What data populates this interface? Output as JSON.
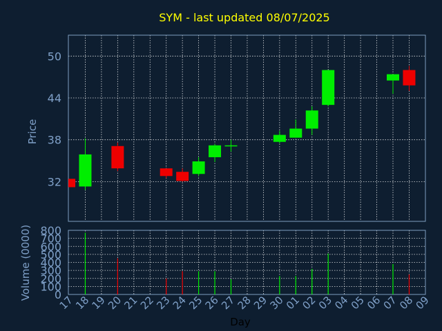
{
  "chart_data": {
    "type": "candlestick",
    "title": "SYM - last updated 08/07/2025",
    "colors": {
      "background": "#0e1e30",
      "title": "#ffff00",
      "axis_text": "#7fa0c8",
      "frame": "#7f9fc0",
      "grid": "#ffffff",
      "up": "#00ee00",
      "down": "#ee0000"
    },
    "price_panel": {
      "ylabel": "Price",
      "ylim": [
        26.3,
        53.0
      ],
      "yticks": [
        32,
        38,
        44,
        50
      ]
    },
    "volume_panel": {
      "ylabel": "Volume (0000)",
      "ylim": [
        0,
        800
      ],
      "yticks": [
        0,
        100,
        200,
        300,
        400,
        500,
        600,
        700,
        800
      ]
    },
    "xlabel": "Day",
    "x_tick_labels": [
      "17",
      "18",
      "19",
      "20",
      "21",
      "22",
      "23",
      "24",
      "25",
      "26",
      "27",
      "28",
      "29",
      "30",
      "01",
      "02",
      "03",
      "04",
      "05",
      "06",
      "07",
      "08",
      "09"
    ],
    "candles": [
      {
        "day_index": 0,
        "open": 32.4,
        "high": 32.4,
        "low": 31.2,
        "close": 31.2,
        "volume": 0
      },
      {
        "day_index": 1,
        "open": 31.3,
        "high": 38.2,
        "low": 30.8,
        "close": 35.9,
        "volume": 770
      },
      {
        "day_index": 3,
        "open": 37.1,
        "high": 37.6,
        "low": 33.5,
        "close": 33.9,
        "volume": 450
      },
      {
        "day_index": 6,
        "open": 33.9,
        "high": 33.9,
        "low": 32.5,
        "close": 32.8,
        "volume": 200
      },
      {
        "day_index": 7,
        "open": 33.4,
        "high": 33.9,
        "low": 32.0,
        "close": 32.1,
        "volume": 290
      },
      {
        "day_index": 8,
        "open": 33.1,
        "high": 35.5,
        "low": 32.8,
        "close": 34.9,
        "volume": 290
      },
      {
        "day_index": 9,
        "open": 35.5,
        "high": 37.4,
        "low": 34.8,
        "close": 37.2,
        "volume": 290
      },
      {
        "day_index": 10,
        "open": 37.2,
        "high": 38.0,
        "low": 36.3,
        "close": 37.2,
        "volume": 190
      },
      {
        "day_index": 13,
        "open": 37.7,
        "high": 39.3,
        "low": 37.5,
        "close": 38.7,
        "volume": 230
      },
      {
        "day_index": 14,
        "open": 38.3,
        "high": 40.9,
        "low": 38.3,
        "close": 39.6,
        "volume": 230
      },
      {
        "day_index": 15,
        "open": 39.6,
        "high": 42.8,
        "low": 38.7,
        "close": 42.2,
        "volume": 320
      },
      {
        "day_index": 16,
        "open": 43.0,
        "high": 48.0,
        "low": 42.8,
        "close": 48.0,
        "volume": 510
      },
      {
        "day_index": 20,
        "open": 46.5,
        "high": 47.4,
        "low": 44.6,
        "close": 47.4,
        "volume": 380
      },
      {
        "day_index": 21,
        "open": 48.0,
        "high": 48.6,
        "low": 45.0,
        "close": 45.8,
        "volume": 250
      }
    ]
  }
}
